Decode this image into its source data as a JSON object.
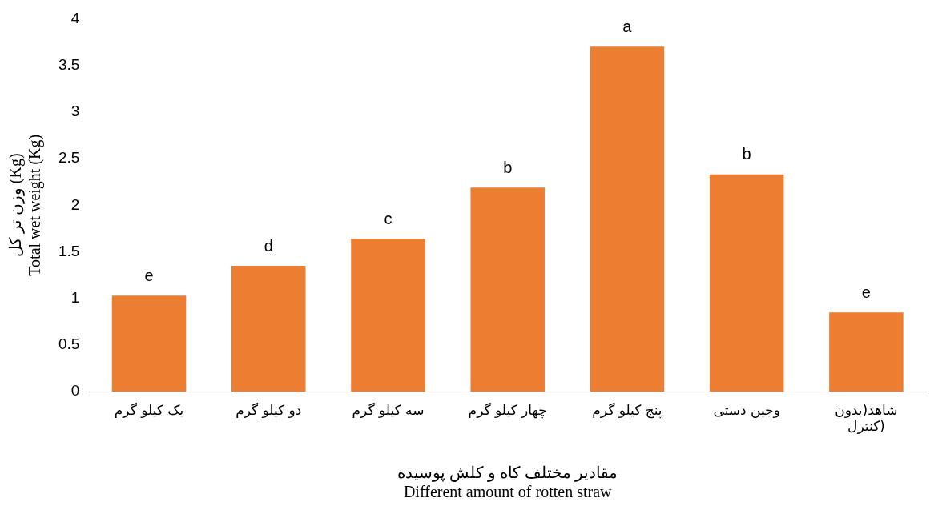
{
  "chart_data": {
    "type": "bar",
    "xlabel": "مقادیر مختلف کاه و کلش پوسیده\nDifferent amount of rotten straw",
    "ylabel": "وزن تر کل (Kg)\nTotal wet weight (Kg)",
    "categories": [
      "یک کیلو گرم",
      "دو کیلو گرم",
      "سه کیلو گرم",
      "چهار کیلو گرم",
      "پنج کیلو گرم",
      "وجین دستی",
      "شاهد(بدون کنترل)"
    ],
    "values": [
      1.03,
      1.35,
      1.64,
      2.19,
      3.7,
      2.33,
      0.85
    ],
    "color": "#ed7d31",
    "ylim": [
      0,
      4
    ],
    "yticks": [
      0,
      0.5,
      1,
      1.5,
      2,
      2.5,
      3,
      3.5,
      4
    ],
    "grid": false,
    "legend": false,
    "annotations": [
      {
        "text": "e",
        "x": "یک کیلو گرم",
        "y": 1.03
      },
      {
        "text": "d",
        "x": "دو کیلو گرم",
        "y": 1.35
      },
      {
        "text": "c",
        "x": "سه کیلو گرم",
        "y": 1.64
      },
      {
        "text": "b",
        "x": "چهار کیلو گرم",
        "y": 2.19
      },
      {
        "text": "a",
        "x": "پنج کیلو گرم",
        "y": 3.7
      },
      {
        "text": "b",
        "x": "وجین دستی",
        "y": 2.33
      },
      {
        "text": "e",
        "x": "شاهد(بدون کنترل)",
        "y": 0.85
      }
    ]
  }
}
